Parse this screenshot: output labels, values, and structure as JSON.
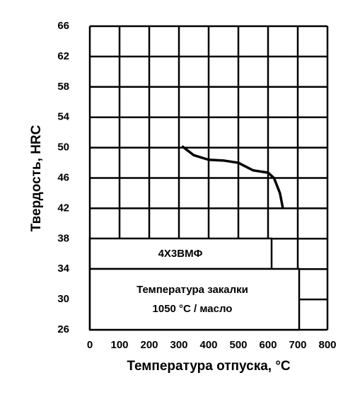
{
  "chart_data": {
    "type": "line",
    "xlabel": "Температура отпуска, °C",
    "ylabel": "Твердость, HRC",
    "x": [
      310,
      350,
      400,
      450,
      500,
      550,
      600,
      620,
      640,
      650
    ],
    "series": [
      {
        "name": "4Х3ВМФ",
        "color": "#000000",
        "values": [
          50.2,
          49.0,
          48.4,
          48.3,
          48.0,
          47.0,
          46.7,
          46.0,
          44.0,
          42.0
        ]
      }
    ],
    "annotations": [
      "4Х3ВМФ",
      "Температура закалки",
      "1050 °C / масло"
    ],
    "xlim": [
      0,
      800
    ],
    "xticks": [
      0,
      100,
      200,
      300,
      400,
      500,
      600,
      700,
      800
    ],
    "ylim": [
      26,
      66
    ],
    "yticks": [
      26,
      30,
      34,
      38,
      42,
      46,
      50,
      54,
      58,
      62,
      66
    ],
    "grid": true
  }
}
